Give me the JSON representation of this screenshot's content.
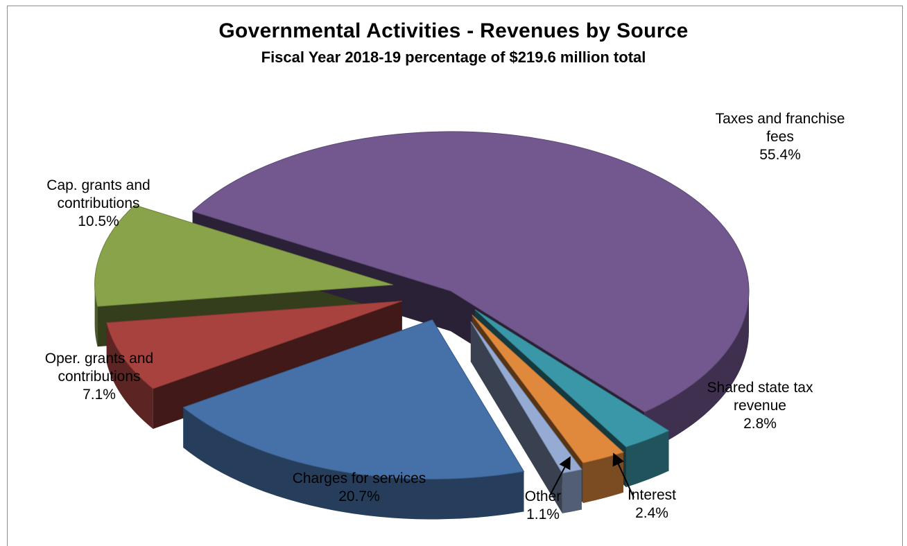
{
  "chart_data": {
    "type": "pie",
    "style": "3d-exploded",
    "title": "Governmental Activities  - Revenues  by Source",
    "subtitle": "Fiscal Year 2018-19 percentage of $219.6 million total",
    "slices": [
      {
        "label_lines": [
          "Taxes and franchise",
          "fees"
        ],
        "value_text": "55.4%",
        "value": 55.4,
        "color": "#72588F"
      },
      {
        "label_lines": [
          "Shared state tax",
          "revenue"
        ],
        "value_text": "2.8%",
        "value": 2.8,
        "color": "#3A97A8"
      },
      {
        "label_lines": [
          "Interest"
        ],
        "value_text": "2.4%",
        "value": 2.4,
        "color": "#E0893C"
      },
      {
        "label_lines": [
          "Other"
        ],
        "value_text": "1.1%",
        "value": 1.1,
        "color": "#95ABD3"
      },
      {
        "label_lines": [
          "Charges for services"
        ],
        "value_text": "20.7%",
        "value": 20.7,
        "color": "#4570A8"
      },
      {
        "label_lines": [
          "Oper. grants and",
          "contributions"
        ],
        "value_text": "7.1%",
        "value": 7.1,
        "color": "#A8423F"
      },
      {
        "label_lines": [
          "Cap. grants and",
          "contributions"
        ],
        "value_text": "10.5%",
        "value": 10.5,
        "color": "#88A34A"
      }
    ],
    "legend": "none"
  }
}
